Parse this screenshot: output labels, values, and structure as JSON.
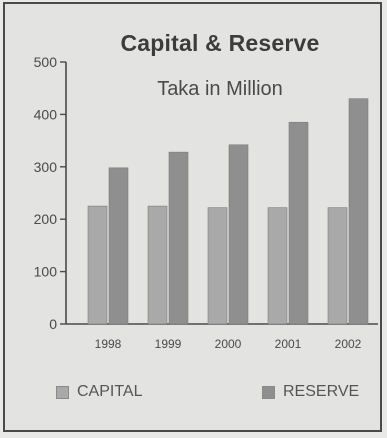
{
  "chart_data": {
    "type": "bar",
    "title": "Capital & Reserve",
    "subtitle": "Taka in Million",
    "xlabel": "",
    "ylabel": "",
    "categories": [
      "1998",
      "1999",
      "2000",
      "2001",
      "2002"
    ],
    "series": [
      {
        "name": "CAPITAL",
        "values": [
          225,
          225,
          222,
          222,
          222
        ],
        "color": "#a9a9a9"
      },
      {
        "name": "RESERVE",
        "values": [
          298,
          328,
          342,
          385,
          430
        ],
        "color": "#8f8f8f"
      }
    ],
    "ylim": [
      0,
      500
    ],
    "yticks": [
      0,
      100,
      200,
      300,
      400,
      500
    ],
    "grid": false,
    "legend_position": "bottom"
  },
  "legend": {
    "capital_label": "CAPITAL",
    "reserve_label": "RESERVE"
  }
}
